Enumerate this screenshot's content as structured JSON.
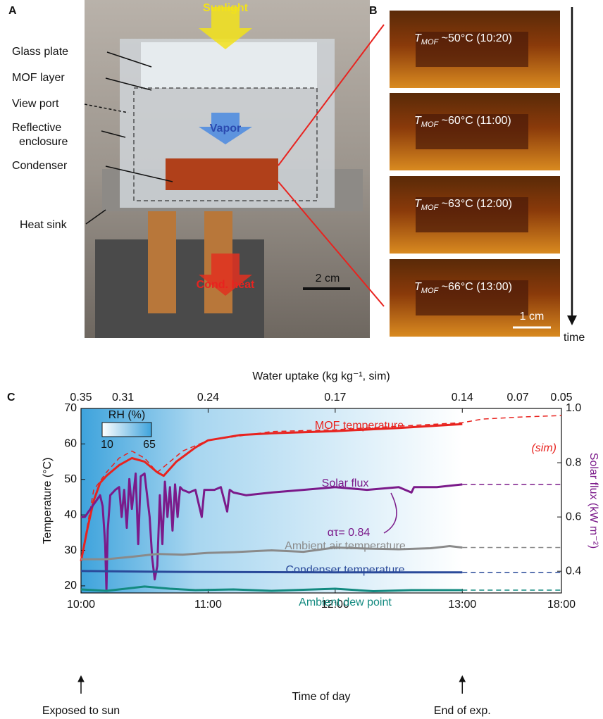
{
  "panel_a": {
    "letter": "A",
    "labels": [
      "Glass plate",
      "MOF layer",
      "View port",
      [
        "Reflective",
        "enclosure"
      ],
      "Condenser",
      "Heat sink"
    ],
    "arrows": [
      "Sunlight",
      "Vapor",
      "Cond. heat"
    ],
    "scale": "2 cm"
  },
  "panel_b": {
    "letter": "B",
    "frames": [
      {
        "symbol": "T",
        "subscript": "MOF",
        "text": " ~50°C (10:20)"
      },
      {
        "symbol": "T",
        "subscript": "MOF",
        "text": " ~60°C (11:00)"
      },
      {
        "symbol": "T",
        "subscript": "MOF",
        "text": " ~63°C (12:00)"
      },
      {
        "symbol": "T",
        "subscript": "MOF",
        "text": " ~66°C (13:00)"
      }
    ],
    "scale": "1 cm",
    "axis": "time"
  },
  "chart_data": {
    "type": "line",
    "letter": "C",
    "xlabel": "Time of day",
    "ylabel": "Temperature (°C)",
    "y2label": "Solar flux (kW m⁻²)",
    "x2label": "Water uptake (kg kg⁻¹, sim)",
    "xticks": [
      {
        "value": 10,
        "label": "10:00"
      },
      {
        "value": 11,
        "label": "11:00"
      },
      {
        "value": 12,
        "label": "12:00"
      },
      {
        "value": 13,
        "label": "13:00"
      },
      {
        "value": 18,
        "label": "18:00"
      }
    ],
    "x2ticks": [
      0.35,
      0.31,
      0.24,
      0.17,
      0.14,
      0.07,
      0.05
    ],
    "ylim": [
      18,
      70
    ],
    "yticks": [
      20,
      30,
      40,
      50,
      60,
      70
    ],
    "y2lim": [
      0.32,
      1.0
    ],
    "y2ticks": [
      0.4,
      0.6,
      0.8,
      {
        "value": 1,
        "label": "1.0"
      }
    ],
    "annotations": [
      "Exposed to sun",
      "End of exp.",
      "ατ= 0.84"
    ],
    "colorbar": {
      "title": "RH (%)",
      "ticks": [
        10,
        65
      ]
    },
    "series": [
      {
        "name": "MOF temperature",
        "color": "#e8231f",
        "x": [
          10,
          10.05,
          10.1,
          10.15,
          10.2,
          10.3,
          10.4,
          10.5,
          10.6,
          10.65,
          10.75,
          10.9,
          11,
          11.25,
          11.5,
          12,
          12.5,
          13
        ],
        "values": [
          27,
          36,
          44,
          49,
          51,
          54,
          56,
          55,
          52,
          51,
          55,
          59,
          61,
          62.5,
          63,
          63.6,
          64.5,
          65.6
        ]
      },
      {
        "name": "(sim)",
        "color": "#e8231f",
        "dashed": true,
        "x": [
          10,
          10.1,
          10.2,
          10.3,
          10.4,
          10.5,
          10.6,
          10.7,
          10.8,
          11,
          11.5,
          12,
          12.5,
          13,
          14,
          16,
          18
        ],
        "values": [
          27,
          47,
          52,
          56,
          58,
          56,
          52,
          55,
          58,
          61,
          63.5,
          64,
          65,
          66,
          67,
          67.6,
          68
        ]
      },
      {
        "name": "Solar flux",
        "color": "#7b1a8a",
        "axis": "y2",
        "x": [
          10,
          10.03,
          10.06,
          10.09,
          10.12,
          10.15,
          10.17,
          10.19,
          10.2,
          10.21,
          10.23,
          10.27,
          10.3,
          10.32,
          10.34,
          10.36,
          10.38,
          10.4,
          10.43,
          10.45,
          10.47,
          10.5,
          10.52,
          10.54,
          10.56,
          10.58,
          10.6,
          10.62,
          10.64,
          10.66,
          10.68,
          10.7,
          10.72,
          10.74,
          10.76,
          10.78,
          10.8,
          10.85,
          10.9,
          10.95,
          10.97,
          11,
          11.05,
          11.1,
          11.15,
          11.17,
          11.2,
          11.3,
          11.5,
          11.75,
          12,
          12.25,
          12.5,
          12.6,
          12.62,
          12.8,
          13
        ],
        "values": [
          0.6,
          0.6,
          0.62,
          0.64,
          0.66,
          0.68,
          0.64,
          0.5,
          0.33,
          0.55,
          0.68,
          0.7,
          0.71,
          0.6,
          0.7,
          0.56,
          0.74,
          0.63,
          0.76,
          0.5,
          0.75,
          0.76,
          0.68,
          0.6,
          0.45,
          0.37,
          0.42,
          0.68,
          0.5,
          0.73,
          0.6,
          0.71,
          0.55,
          0.72,
          0.6,
          0.71,
          0.7,
          0.69,
          0.7,
          0.6,
          0.7,
          0.7,
          0.7,
          0.71,
          0.62,
          0.7,
          0.69,
          0.68,
          0.69,
          0.7,
          0.71,
          0.7,
          0.71,
          0.69,
          0.71,
          0.71,
          0.72
        ]
      },
      {
        "color": "#7b1a8a",
        "axis": "y2",
        "dashed": true,
        "x": [
          13,
          18
        ],
        "values": [
          0.72,
          0.72
        ]
      },
      {
        "name": "Ambient air temperature",
        "color": "#8a8a8a",
        "x": [
          10,
          10.2,
          10.4,
          10.6,
          10.8,
          11,
          11.2,
          11.5,
          11.75,
          12,
          12.25,
          12.5,
          12.75,
          12.9,
          13
        ],
        "values": [
          27.5,
          27.5,
          28.2,
          29,
          28.8,
          29.3,
          29.5,
          30,
          29.6,
          30.8,
          30.5,
          30.3,
          30.6,
          31.2,
          30.8
        ]
      },
      {
        "color": "#8a8a8a",
        "dashed": true,
        "x": [
          13,
          18
        ],
        "values": [
          30.8,
          30.8
        ]
      },
      {
        "name": "Condenser temperature",
        "color": "#2a4a9a",
        "x": [
          10,
          10.5,
          11,
          12,
          13
        ],
        "values": [
          24.2,
          24,
          23.9,
          23.8,
          23.8
        ]
      },
      {
        "color": "#2a4a9a",
        "dashed": true,
        "x": [
          13,
          18
        ],
        "values": [
          23.8,
          23.8
        ]
      },
      {
        "name": "Ambient dew point",
        "color": "#138a80",
        "x": [
          10,
          10.2,
          10.35,
          10.5,
          10.7,
          10.9,
          11.2,
          11.5,
          12,
          12.3,
          12.6,
          13
        ],
        "values": [
          19,
          18.6,
          19.2,
          19.8,
          19.2,
          18.8,
          19,
          18.6,
          19.2,
          18.5,
          18.8,
          18.8
        ]
      },
      {
        "color": "#138a80",
        "dashed": true,
        "x": [
          13,
          18
        ],
        "values": [
          18.8,
          18.8
        ]
      }
    ]
  }
}
